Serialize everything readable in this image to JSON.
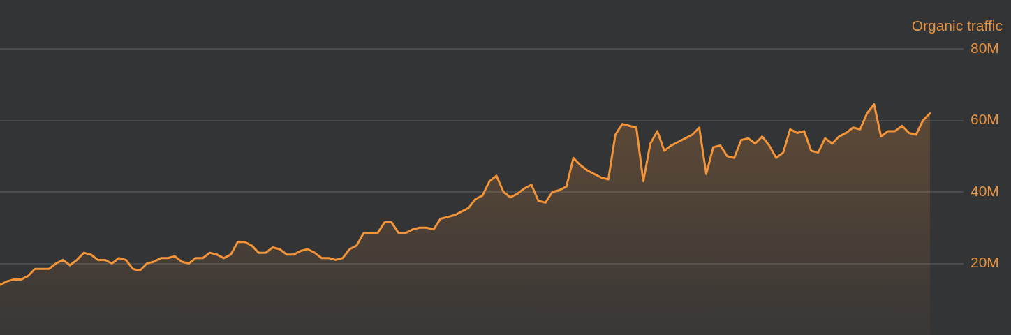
{
  "chart_data": {
    "type": "area",
    "ylabel": "Organic traffic",
    "categories": [
      null,
      null,
      null,
      null,
      null,
      null,
      null,
      null,
      null,
      null,
      null,
      null,
      null,
      null,
      null,
      null,
      null,
      null,
      null,
      null,
      null,
      null,
      null,
      null,
      null,
      null,
      null,
      null,
      null,
      null,
      null,
      null,
      null,
      null,
      null,
      null,
      null,
      null,
      null,
      null,
      null,
      null,
      null,
      null,
      null,
      null,
      null,
      null,
      null,
      null,
      null,
      null,
      null,
      null,
      null,
      null,
      null,
      null,
      null,
      null,
      null,
      null,
      null,
      null,
      null,
      null,
      null,
      null,
      null,
      null,
      null,
      null,
      null,
      null,
      null,
      null,
      null,
      null,
      null,
      null,
      null,
      null,
      null,
      null,
      null,
      null,
      null,
      null,
      null,
      null,
      null,
      null,
      null,
      null,
      null,
      null,
      null,
      null,
      null,
      null,
      null,
      null,
      null,
      null,
      null,
      null,
      null,
      null,
      null,
      null,
      null,
      null,
      null,
      null,
      null,
      null,
      null,
      null,
      null,
      null,
      null,
      null,
      null,
      null,
      null,
      null,
      null,
      null,
      null,
      null,
      null,
      null,
      null,
      null
    ],
    "values": [
      14,
      15,
      15.5,
      15.5,
      16.5,
      18.5,
      18.5,
      18.5,
      20,
      21,
      19.5,
      21,
      23,
      22.5,
      21,
      21,
      20,
      21.5,
      21,
      18.5,
      18,
      20,
      20.5,
      21.5,
      21.5,
      22,
      20.5,
      20,
      21.5,
      21.5,
      23,
      22.5,
      21.5,
      22.5,
      26,
      26,
      25,
      23,
      23,
      24.5,
      24,
      22.5,
      22.5,
      23.5,
      24,
      23,
      21.5,
      21.5,
      21,
      21.5,
      24,
      25,
      28.5,
      28.5,
      28.5,
      31.5,
      31.5,
      28.5,
      28.5,
      29.5,
      30,
      30,
      29.5,
      32.5,
      33,
      33.5,
      34.5,
      35.5,
      38,
      39,
      43,
      44.5,
      40,
      38.5,
      39.5,
      41,
      42,
      37.5,
      37,
      40,
      40.5,
      41.5,
      49.5,
      47.5,
      46,
      45,
      44,
      43.5,
      56,
      59,
      58.5,
      58,
      43,
      53.5,
      57,
      51.5,
      53,
      54,
      55,
      56,
      58,
      45,
      52.5,
      53,
      50,
      49.5,
      54.5,
      55,
      53.5,
      55.5,
      53,
      49.5,
      51,
      57.5,
      56.5,
      57,
      51.5,
      51,
      55,
      53.5,
      55.5,
      56.5,
      58,
      57.5,
      62,
      64.5,
      55.5,
      57,
      57,
      58.5,
      56.5,
      56,
      60,
      62
    ],
    "color": "#f39439",
    "ylim": [
      0,
      80
    ],
    "yticks": [
      {
        "value": 20,
        "label": "20M"
      },
      {
        "value": 40,
        "label": "40M"
      },
      {
        "value": 60,
        "label": "60M"
      },
      {
        "value": 80,
        "label": "80M"
      }
    ],
    "grid": "y",
    "tick_labels": "y"
  }
}
